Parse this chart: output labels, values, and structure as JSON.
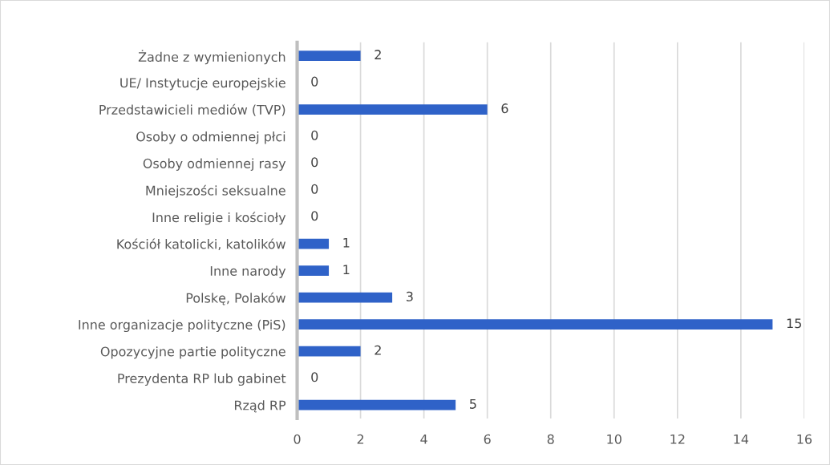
{
  "chart_data": {
    "type": "bar",
    "orientation": "horizontal",
    "categories": [
      "Żadne z wymienionych",
      "UE/ Instytucje europejskie",
      "Przedstawicieli mediów (TVP)",
      "Osoby o odmiennej płci",
      "Osoby odmiennej rasy",
      "Mniejszości seksualne",
      "Inne religie i kościoły",
      "Kościół katolicki, katolików",
      "Inne narody",
      "Polskę, Polaków",
      "Inne organizacje polityczne (PiS)",
      "Opozycyjne partie polityczne",
      "Prezydenta RP lub gabinet",
      "Rząd RP"
    ],
    "values": [
      2,
      0,
      6,
      0,
      0,
      0,
      0,
      1,
      1,
      3,
      15,
      2,
      0,
      5
    ],
    "color": "#2f62c8",
    "xlim": [
      0,
      16
    ],
    "xticks": [
      0,
      2,
      4,
      6,
      8,
      10,
      12,
      14,
      16
    ],
    "grid": "x",
    "data_labels": true,
    "legend": false
  }
}
